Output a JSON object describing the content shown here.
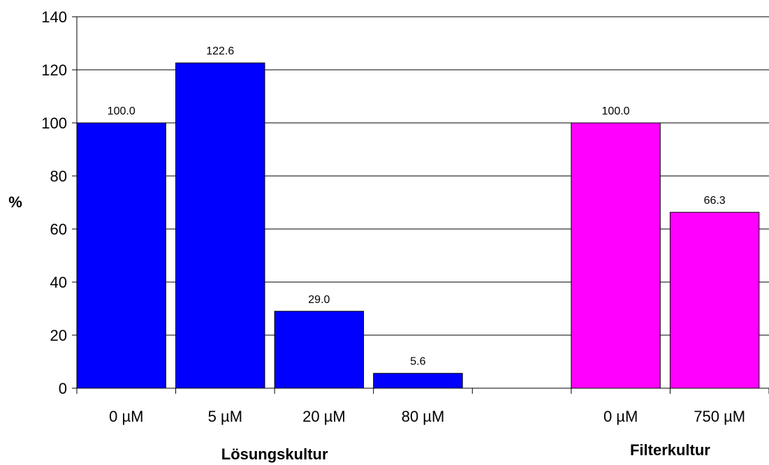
{
  "chart_data": {
    "type": "bar",
    "ylabel": "%",
    "ylim": [
      0,
      140
    ],
    "yticks": [
      0,
      20,
      40,
      60,
      80,
      100,
      120,
      140
    ],
    "grid": true,
    "categories": [
      "0 µM",
      "5 µM",
      "20 µM",
      "80 µM",
      "",
      "0 µM",
      "750 µM"
    ],
    "values": [
      100.0,
      122.6,
      29.0,
      5.6,
      null,
      100.0,
      66.3
    ],
    "value_labels": [
      "100.0",
      "122.6",
      "29.0",
      "5.6",
      "",
      "100.0",
      "66.3"
    ],
    "bar_colors": [
      "#0000ff",
      "#0000ff",
      "#0000ff",
      "#0000ff",
      "",
      "#ff00ff",
      "#ff00ff"
    ],
    "groups": [
      {
        "label": "Lösungskultur",
        "from": 0,
        "to": 3
      },
      {
        "label": "Filterkultur",
        "from": 5,
        "to": 6
      }
    ]
  }
}
